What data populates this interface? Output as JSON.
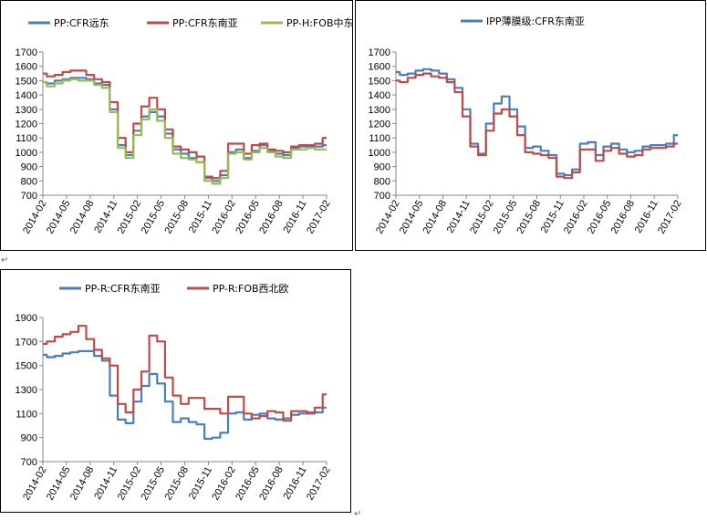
{
  "colors": {
    "blue": "#4a7ebb",
    "red": "#be4b48",
    "green": "#98b954"
  },
  "page_marks": {
    "return_mark": "↵"
  },
  "chart_data": [
    {
      "type": "line",
      "title": "",
      "xlabel": "",
      "ylabel": "",
      "ylim": [
        700,
        1700
      ],
      "yticks": [
        700,
        800,
        900,
        1000,
        1100,
        1200,
        1300,
        1400,
        1500,
        1600,
        1700
      ],
      "xticks": [
        "2014-02",
        "2014-05",
        "2014-08",
        "2014-11",
        "2015-02",
        "2015-05",
        "2015-08",
        "2015-11",
        "2016-02",
        "2016-05",
        "2016-08",
        "2016-11",
        "2017-02"
      ],
      "grid": false,
      "legend": "top",
      "series": [
        {
          "name": "PP:CFR远东",
          "color": "#4a7ebb",
          "values": [
            1490,
            1480,
            1500,
            1510,
            1520,
            1520,
            1510,
            1480,
            1470,
            1300,
            1050,
            980,
            1150,
            1250,
            1280,
            1250,
            1130,
            1020,
            990,
            960,
            930,
            820,
            800,
            840,
            1000,
            1020,
            960,
            1010,
            1050,
            1010,
            990,
            980,
            1030,
            1040,
            1040,
            1040,
            1050
          ]
        },
        {
          "name": "PP:CFR东南亚",
          "color": "#be4b48",
          "values": [
            1550,
            1530,
            1540,
            1560,
            1570,
            1570,
            1540,
            1510,
            1490,
            1350,
            1100,
            1000,
            1200,
            1320,
            1380,
            1300,
            1160,
            1040,
            1020,
            1000,
            970,
            830,
            820,
            870,
            1060,
            1060,
            990,
            1050,
            1060,
            1020,
            1010,
            1000,
            1040,
            1050,
            1050,
            1060,
            1100
          ]
        },
        {
          "name": "PP-H:FOB中东",
          "color": "#98b954",
          "values": [
            1490,
            1460,
            1480,
            1500,
            1510,
            1500,
            1500,
            1470,
            1450,
            1280,
            1030,
            960,
            1120,
            1230,
            1300,
            1220,
            1100,
            990,
            960,
            950,
            930,
            800,
            780,
            820,
            990,
            1000,
            950,
            1000,
            1030,
            1000,
            970,
            960,
            1020,
            1020,
            1030,
            1020,
            1020
          ]
        }
      ]
    },
    {
      "type": "line",
      "title": "",
      "xlabel": "",
      "ylabel": "",
      "ylim": [
        700,
        1700
      ],
      "yticks": [
        700,
        800,
        900,
        1000,
        1100,
        1200,
        1300,
        1400,
        1500,
        1600,
        1700
      ],
      "xticks": [
        "2014-02",
        "2014-05",
        "2014-08",
        "2014-11",
        "2015-02",
        "2015-05",
        "2015-08",
        "2015-11",
        "2016-02",
        "2016-05",
        "2016-08",
        "2016-11",
        "2017-02"
      ],
      "grid": false,
      "legend": "top",
      "series": [
        {
          "name": "IPP薄膜级:CFR东南亚",
          "color": "#4a7ebb",
          "values": [
            1560,
            1540,
            1550,
            1570,
            1580,
            1570,
            1550,
            1510,
            1450,
            1300,
            1060,
            990,
            1200,
            1340,
            1390,
            1300,
            1180,
            1030,
            1040,
            1010,
            980,
            850,
            840,
            880,
            1060,
            1070,
            980,
            1040,
            1060,
            1020,
            1000,
            1010,
            1040,
            1050,
            1050,
            1060,
            1120
          ]
        },
        {
          "name": "",
          "color": "#be4b48",
          "values": [
            1500,
            1490,
            1520,
            1540,
            1550,
            1530,
            1520,
            1490,
            1420,
            1250,
            1040,
            980,
            1150,
            1270,
            1300,
            1250,
            1120,
            1000,
            990,
            980,
            960,
            830,
            820,
            860,
            1020,
            1020,
            940,
            1010,
            1030,
            990,
            970,
            980,
            1020,
            1030,
            1030,
            1040,
            1060
          ]
        }
      ]
    },
    {
      "type": "line",
      "title": "",
      "xlabel": "",
      "ylabel": "",
      "ylim": [
        700,
        1900
      ],
      "yticks": [
        700,
        900,
        1100,
        1300,
        1500,
        1700,
        1900
      ],
      "xticks": [
        "2014-02",
        "2014-05",
        "2014-08",
        "2014-11",
        "2015-02",
        "2015-05",
        "2015-08",
        "2015-11",
        "2016-02",
        "2016-05",
        "2016-08",
        "2016-11",
        "2017-02"
      ],
      "grid": false,
      "legend": "top",
      "series": [
        {
          "name": "PP-R:CFR东南亚",
          "color": "#4a7ebb",
          "values": [
            1590,
            1570,
            1580,
            1600,
            1610,
            1620,
            1620,
            1580,
            1540,
            1250,
            1050,
            1020,
            1200,
            1330,
            1430,
            1350,
            1200,
            1030,
            1060,
            1030,
            1010,
            890,
            900,
            940,
            1100,
            1110,
            1050,
            1090,
            1100,
            1060,
            1050,
            1060,
            1090,
            1100,
            1110,
            1110,
            1150
          ]
        },
        {
          "name": "PP-R:FOB西北欧",
          "color": "#be4b48",
          "values": [
            1680,
            1700,
            1740,
            1760,
            1780,
            1830,
            1720,
            1630,
            1560,
            1500,
            1180,
            1110,
            1300,
            1450,
            1750,
            1700,
            1400,
            1250,
            1180,
            1230,
            1230,
            1140,
            1140,
            1100,
            1240,
            1240,
            1100,
            1060,
            1080,
            1120,
            1110,
            1040,
            1120,
            1120,
            1100,
            1150,
            1260
          ]
        }
      ]
    }
  ]
}
